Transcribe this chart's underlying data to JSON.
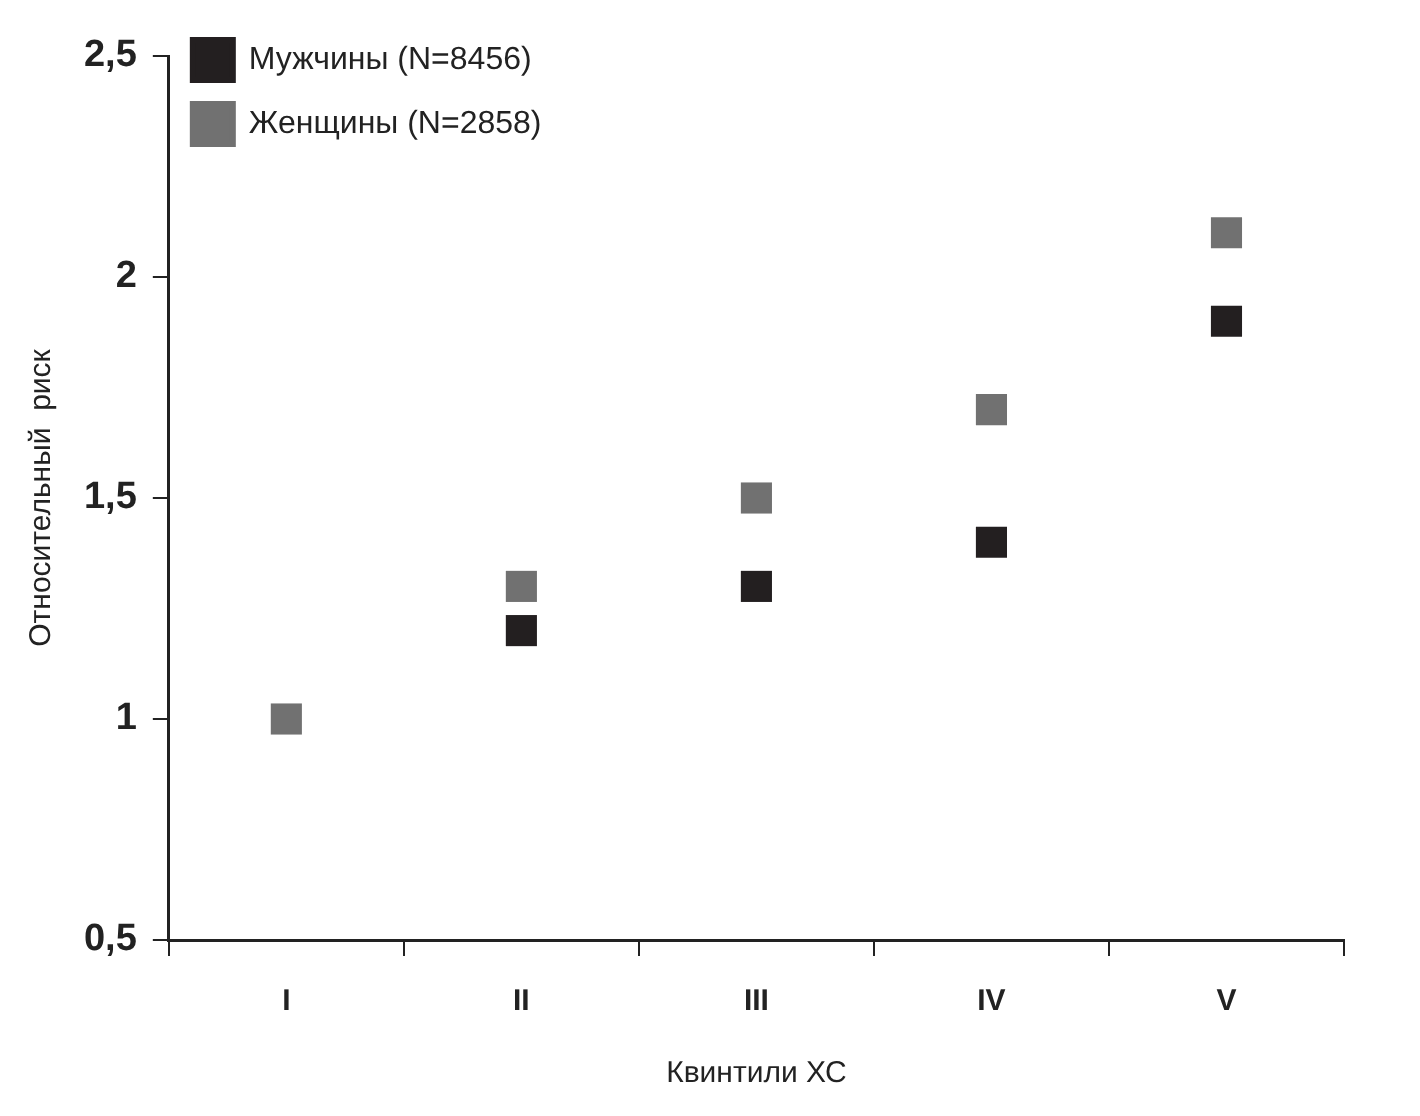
{
  "chart_data": {
    "type": "scatter",
    "xlabel": "Квинтили ХС",
    "ylabel": "Относительный  риск",
    "categories": [
      "I",
      "II",
      "III",
      "IV",
      "V"
    ],
    "series": [
      {
        "name": "Мужчины (N=8456)",
        "color": "#231f20",
        "values": [
          null,
          1.2,
          1.3,
          1.4,
          1.9
        ]
      },
      {
        "name": "Женщины (N=2858)",
        "color": "#717171",
        "values": [
          1.0,
          1.3,
          1.5,
          1.7,
          2.1
        ]
      }
    ],
    "ylim": [
      0.5,
      2.5
    ],
    "yticks": [
      {
        "value": 0.5,
        "label": "0,5"
      },
      1,
      {
        "value": 1.5,
        "label": "1,5"
      },
      2,
      {
        "value": 2.5,
        "label": "2,5"
      }
    ],
    "grid": false,
    "legend": "top left",
    "marker": "square"
  }
}
